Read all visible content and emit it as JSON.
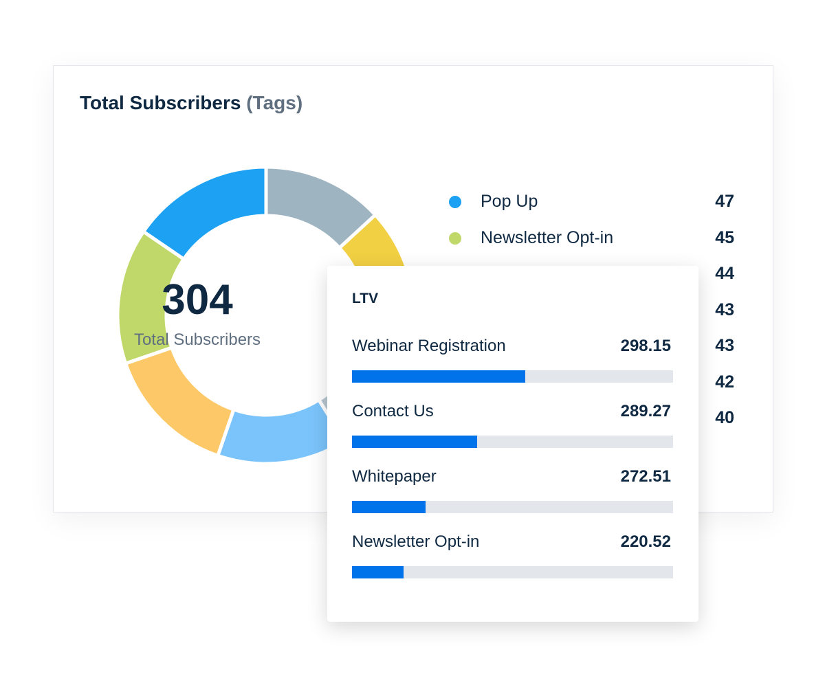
{
  "main_card": {
    "title": "Total Subscribers",
    "title_suffix": "(Tags)"
  },
  "chart_data": {
    "type": "pie",
    "variant": "donut",
    "title": "Total Subscribers (Tags)",
    "total": 304,
    "total_label": "Total Subscribers",
    "series": [
      {
        "name": "Pop Up",
        "value": 47,
        "color": "#1da1f2"
      },
      {
        "name": "Newsletter Opt-in",
        "value": 45,
        "color": "#c0d86a"
      },
      {
        "name": "",
        "value": 44,
        "color": "#fdc868"
      },
      {
        "name": "",
        "value": 43,
        "color": "#7bc4fb"
      },
      {
        "name": "",
        "value": 43,
        "color": "#b8c6d0"
      },
      {
        "name": "",
        "value": 42,
        "color": "#f2d044"
      },
      {
        "name": "",
        "value": 40,
        "color": "#9fb4c1"
      }
    ]
  },
  "ltv_card": {
    "title": "LTV",
    "accent": "#0073ea",
    "rows": [
      {
        "label": "Webinar Registration",
        "value": "298.15",
        "fill_pct": 54
      },
      {
        "label": "Contact Us",
        "value": "289.27",
        "fill_pct": 39
      },
      {
        "label": "Whitepaper",
        "value": "272.51",
        "fill_pct": 23
      },
      {
        "label": "Newsletter Opt-in",
        "value": "220.52",
        "fill_pct": 16
      }
    ]
  }
}
